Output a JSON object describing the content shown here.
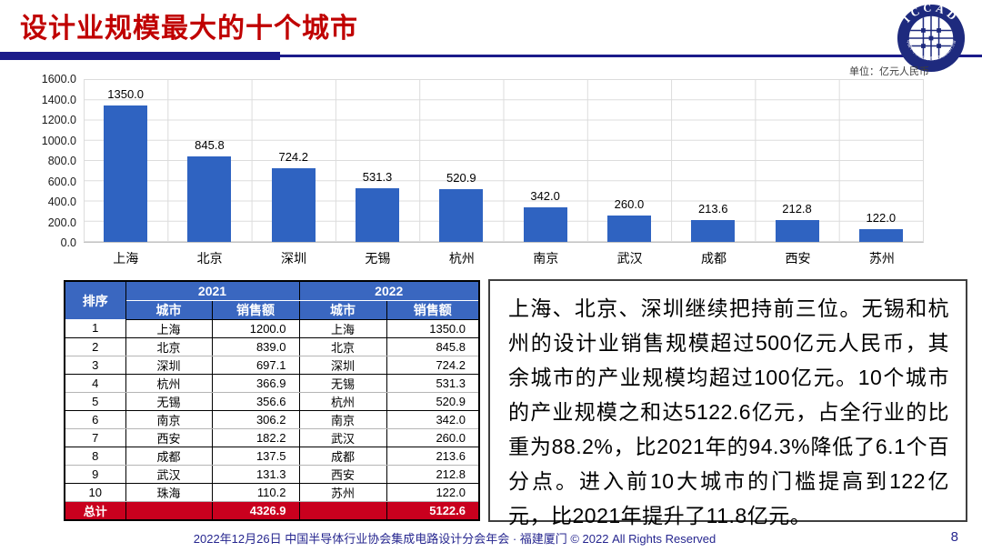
{
  "slide_title": "设计业规模最大的十个城市",
  "unit_label": "单位：亿元人民币",
  "logo": {
    "acronym": "ICCAD",
    "ring_text": "中国半导体行业协会集成电路设计分会"
  },
  "chart_data": {
    "type": "bar",
    "title": "",
    "xlabel": "",
    "ylabel": "单位：亿元人民币",
    "categories": [
      "上海",
      "北京",
      "深圳",
      "无锡",
      "杭州",
      "南京",
      "武汉",
      "成都",
      "西安",
      "苏州"
    ],
    "values": [
      1350.0,
      845.8,
      724.2,
      531.3,
      520.9,
      342.0,
      260.0,
      213.6,
      212.8,
      122.0
    ],
    "value_labels": [
      "1350.0",
      "845.8",
      "724.2",
      "531.3",
      "520.9",
      "342.0",
      "260.0",
      "213.6",
      "212.8",
      "122.0"
    ],
    "ylim": [
      0,
      1600
    ],
    "ytick_step": 200,
    "yticks_top_to_bottom": [
      "1600.0",
      "1400.0",
      "1200.0",
      "1000.0",
      "800.0",
      "600.0",
      "400.0",
      "200.0",
      "0.0"
    ],
    "grid": true,
    "legend": "none",
    "bar_color": "#2F63C1"
  },
  "table": {
    "rank_header": "排序",
    "year_headers": [
      "2021",
      "2022"
    ],
    "sub_headers": [
      "城市",
      "销售额"
    ],
    "rows": [
      [
        "1",
        "上海",
        "1200.0",
        "上海",
        "1350.0"
      ],
      [
        "2",
        "北京",
        "839.0",
        "北京",
        "845.8"
      ],
      [
        "3",
        "深圳",
        "697.1",
        "深圳",
        "724.2"
      ],
      [
        "4",
        "杭州",
        "366.9",
        "无锡",
        "531.3"
      ],
      [
        "5",
        "无锡",
        "356.6",
        "杭州",
        "520.9"
      ],
      [
        "6",
        "南京",
        "306.2",
        "南京",
        "342.0"
      ],
      [
        "7",
        "西安",
        "182.2",
        "武汉",
        "260.0"
      ],
      [
        "8",
        "成都",
        "137.5",
        "成都",
        "213.6"
      ],
      [
        "9",
        "武汉",
        "131.3",
        "西安",
        "212.8"
      ],
      [
        "10",
        "珠海",
        "110.2",
        "苏州",
        "122.0"
      ]
    ],
    "total_label": "总计",
    "totals": [
      "4326.9",
      "5122.6"
    ]
  },
  "commentary": "上海、北京、深圳继续把持前三位。无锡和杭州的设计业销售规模超过500亿元人民币，其余城市的产业规模均超过100亿元。10个城市的产业规模之和达5122.6亿元，占全行业的比重为88.2%，比2021年的94.3%降低了6.1个百分点。进入前10大城市的门槛提高到122亿元，比2021年提升了11.8亿元。",
  "footer": {
    "text": "2022年12月26日 中国半导体行业协会集成电路设计分会年会 · 福建厦门 © 2022 All Rights Reserved",
    "page_number": "8"
  },
  "colors": {
    "title": "#C00000",
    "divider": "#1B1B8A",
    "bar": "#2F63C1",
    "table_header_bg": "#3A67C0",
    "table_total_bg": "#C9001E",
    "footer_text": "#26268F"
  }
}
